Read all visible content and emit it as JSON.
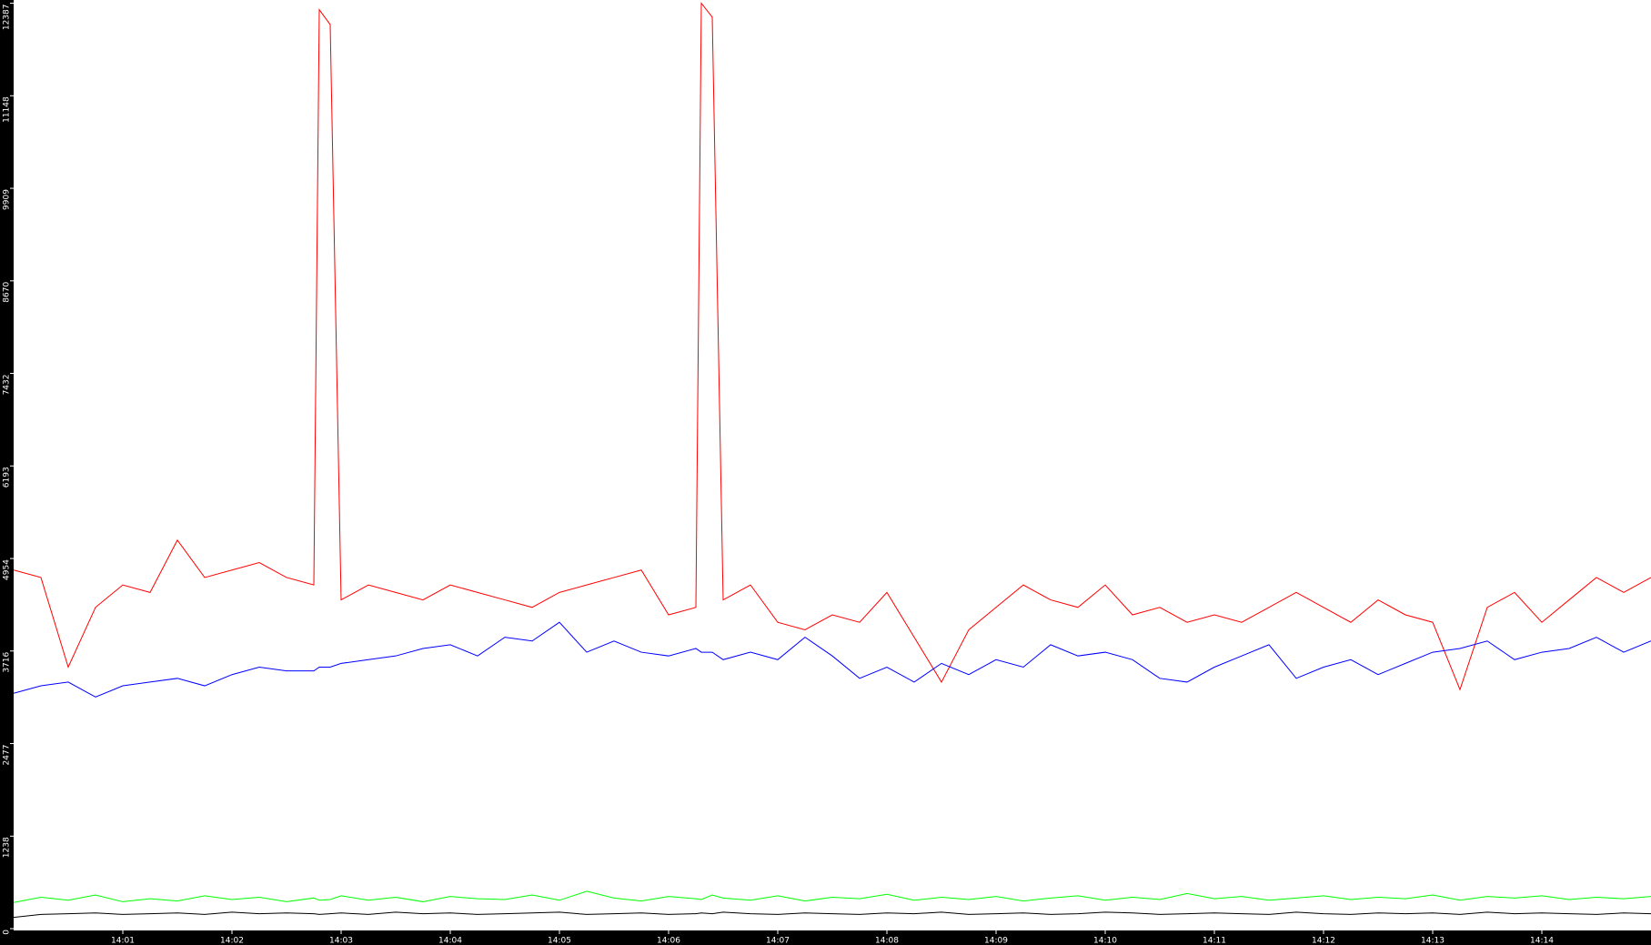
{
  "chart_data": {
    "type": "line",
    "x": [
      840,
      840.25,
      840.5,
      840.75,
      841,
      841.25,
      841.5,
      841.75,
      842,
      842.25,
      842.5,
      842.75,
      842.8,
      842.9,
      843,
      843.25,
      843.5,
      843.75,
      844,
      844.25,
      844.5,
      844.75,
      845,
      845.25,
      845.5,
      845.75,
      846,
      846.25,
      846.3,
      846.4,
      846.5,
      846.75,
      847,
      847.25,
      847.5,
      847.75,
      848,
      848.25,
      848.5,
      848.75,
      849,
      849.25,
      849.5,
      849.75,
      850,
      850.25,
      850.5,
      850.75,
      851,
      851.25,
      851.5,
      851.75,
      852,
      852.25,
      852.5,
      852.75,
      853,
      853.25,
      853.5,
      853.75,
      854,
      854.25,
      854.5,
      854.75,
      855
    ],
    "series": [
      {
        "color": "#ff0000",
        "values": [
          4800,
          4700,
          3500,
          4300,
          4600,
          4500,
          5200,
          4700,
          4800,
          4900,
          4700,
          4600,
          12300,
          12100,
          4400,
          4600,
          4500,
          4400,
          4600,
          4500,
          4400,
          4300,
          4500,
          4600,
          4700,
          4800,
          4200,
          4300,
          12387,
          12200,
          4400,
          4600,
          4100,
          4000,
          4200,
          4100,
          4500,
          3900,
          3300,
          4000,
          4300,
          4600,
          4400,
          4300,
          4600,
          4200,
          4300,
          4100,
          4200,
          4100,
          4300,
          4500,
          4300,
          4100,
          4400,
          4200,
          4100,
          3200,
          4300,
          4500,
          4100,
          4400,
          4700,
          4500,
          4700
        ]
      },
      {
        "color": "#0000ff",
        "values": [
          3150,
          3250,
          3300,
          3100,
          3250,
          3300,
          3350,
          3250,
          3400,
          3500,
          3450,
          3450,
          3500,
          3500,
          3550,
          3600,
          3650,
          3750,
          3800,
          3650,
          3900,
          3850,
          4100,
          3700,
          3850,
          3700,
          3650,
          3750,
          3700,
          3700,
          3600,
          3700,
          3600,
          3900,
          3650,
          3350,
          3500,
          3300,
          3550,
          3400,
          3600,
          3500,
          3800,
          3650,
          3700,
          3600,
          3350,
          3300,
          3500,
          3650,
          3800,
          3350,
          3500,
          3600,
          3400,
          3550,
          3700,
          3750,
          3850,
          3600,
          3700,
          3750,
          3900,
          3700,
          3850
        ]
      },
      {
        "color": "#00ff00",
        "values": [
          350,
          420,
          380,
          450,
          360,
          400,
          370,
          440,
          390,
          420,
          360,
          410,
          380,
          390,
          440,
          380,
          420,
          360,
          430,
          400,
          390,
          450,
          380,
          500,
          410,
          370,
          430,
          400,
          390,
          450,
          410,
          380,
          440,
          370,
          420,
          400,
          460,
          380,
          420,
          390,
          430,
          370,
          410,
          440,
          380,
          420,
          390,
          470,
          400,
          430,
          380,
          410,
          440,
          390,
          420,
          400,
          450,
          380,
          430,
          410,
          440,
          390,
          420,
          400,
          430
        ]
      },
      {
        "color": "#000000",
        "values": [
          150,
          190,
          200,
          210,
          190,
          200,
          210,
          190,
          220,
          200,
          210,
          200,
          190,
          200,
          210,
          190,
          220,
          200,
          210,
          190,
          200,
          210,
          220,
          190,
          200,
          210,
          190,
          200,
          210,
          200,
          220,
          200,
          190,
          210,
          200,
          190,
          210,
          200,
          220,
          190,
          200,
          210,
          190,
          200,
          220,
          210,
          190,
          200,
          210,
          200,
          190,
          220,
          200,
          190,
          210,
          200,
          210,
          190,
          220,
          200,
          210,
          200,
          190,
          210,
          200
        ]
      }
    ],
    "xlim": [
      840,
      855
    ],
    "xticks": [
      {
        "value": 841,
        "label": "14:01"
      },
      {
        "value": 842,
        "label": "14:02"
      },
      {
        "value": 843,
        "label": "14:03"
      },
      {
        "value": 844,
        "label": "14:04"
      },
      {
        "value": 845,
        "label": "14:05"
      },
      {
        "value": 846,
        "label": "14:06"
      },
      {
        "value": 847,
        "label": "14:07"
      },
      {
        "value": 848,
        "label": "14:08"
      },
      {
        "value": 849,
        "label": "14:09"
      },
      {
        "value": 850,
        "label": "14:10"
      },
      {
        "value": 851,
        "label": "14:11"
      },
      {
        "value": 852,
        "label": "14:12"
      },
      {
        "value": 853,
        "label": "14:13"
      },
      {
        "value": 854,
        "label": "14:14"
      }
    ],
    "ylim": [
      0,
      12387
    ],
    "yticks": [
      0,
      1238,
      2477,
      3716,
      4954,
      6193,
      7432,
      8670,
      9909,
      11148,
      12387
    ],
    "grid": false
  }
}
